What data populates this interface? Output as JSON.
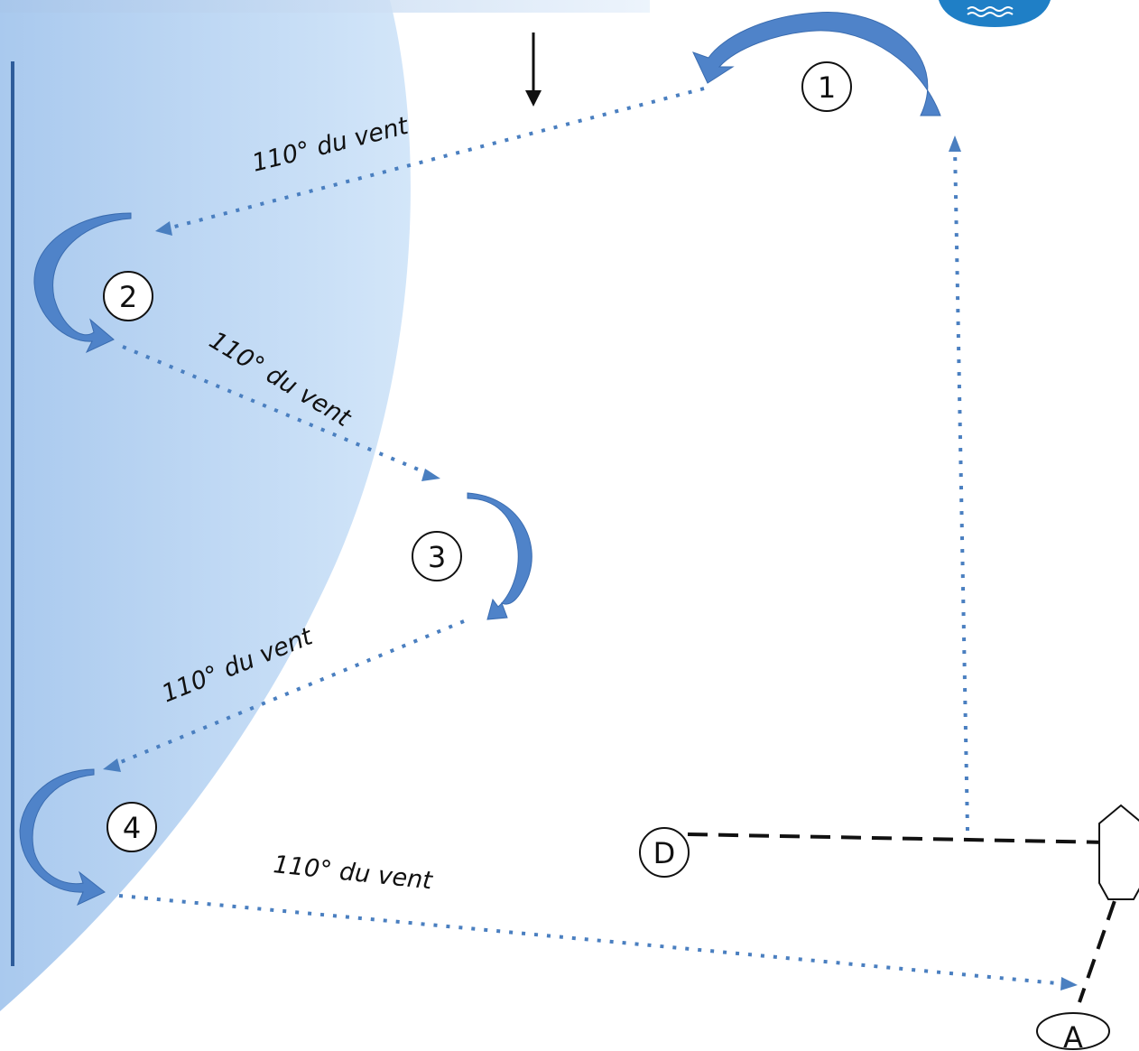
{
  "diagram": {
    "colors": {
      "water": "#bcd7f3",
      "shore": "#2e5c9a",
      "course": "#4a7fc0",
      "turn_arrow": "#4f83c9",
      "ink": "#111111"
    },
    "marks": [
      {
        "id": "1",
        "label": "1"
      },
      {
        "id": "2",
        "label": "2"
      },
      {
        "id": "3",
        "label": "3"
      },
      {
        "id": "4",
        "label": "4"
      },
      {
        "id": "D",
        "label": "D"
      },
      {
        "id": "A",
        "label": "A"
      }
    ],
    "legs": [
      {
        "from": "1",
        "to": "2",
        "label": "110° du vent"
      },
      {
        "from": "2",
        "to": "3",
        "label": "110° du vent"
      },
      {
        "from": "3",
        "to": "4",
        "label": "110° du vent"
      },
      {
        "from": "4",
        "to": "A",
        "label": "110° du vent"
      }
    ],
    "icons": {
      "wind": "wind-arrow-icon",
      "boat": "boat-icon",
      "logo": "sailing-club-logo-icon"
    }
  }
}
